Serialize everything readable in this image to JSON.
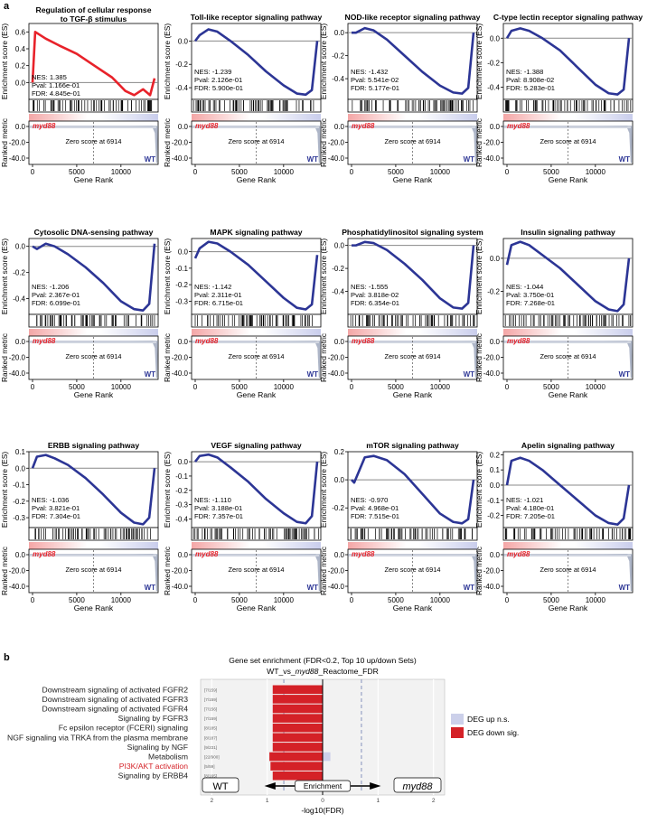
{
  "panel_labels": {
    "a": "a",
    "b": "b"
  },
  "gsea_common": {
    "y_axis_label": "Enrichment score (ES)",
    "ranked_axis_label": "Ranked metric",
    "x_axis_label": "Gene Rank",
    "x_ticks": [
      "0",
      "5000",
      "10000"
    ],
    "ranked_ticks": [
      "0.0",
      "-20.0",
      "-40.0"
    ],
    "group_left": "myd88",
    "group_right": "WT",
    "zero_score_text": "Zero score at 6914",
    "colors": {
      "line_up": "#e8222a",
      "line_down": "#2c3595",
      "group_left": "#e8222a",
      "group_right": "#2c3595"
    }
  },
  "panels": [
    {
      "title": "Regulation of cellular response to TGF-β stimulus",
      "title_line2": "to TGF-β stimulus",
      "title_line1": "Regulation of cellular response",
      "nes": "NES: 1.385",
      "pval": "Pval: 1.166e-01",
      "fdr": "FDR: 4.845e-01",
      "y_ticks": [
        "0.6",
        "0.4",
        "0.2",
        "0.0"
      ],
      "up": true
    },
    {
      "title_line1": "Toll-like receptor signaling pathway",
      "nes": "NES: -1.239",
      "pval": "Pval: 2.126e-01",
      "fdr": "FDR: 5.900e-01",
      "y_ticks": [
        "0.0",
        "-0.2",
        "-0.4"
      ],
      "up": false
    },
    {
      "title_line1": "NOD-like receptor signaling pathway",
      "nes": "NES: -1.432",
      "pval": "Pval: 5.541e-02",
      "fdr": "FDR: 5.177e-01",
      "y_ticks": [
        "0.0",
        "-0.2",
        "-0.4"
      ],
      "up": false
    },
    {
      "title_line1": "C-type lectin receptor signaling pathway",
      "nes": "NES: -1.388",
      "pval": "Pval: 8.908e-02",
      "fdr": "FDR: 5.283e-01",
      "y_ticks": [
        "0.0",
        "-0.2",
        "-0.4"
      ],
      "up": false
    },
    {
      "title_line1": "Cytosolic DNA-sensing pathway",
      "nes": "NES: -1.206",
      "pval": "Pval: 2.367e-01",
      "fdr": "FDR: 6.099e-01",
      "y_ticks": [
        "0.0",
        "-0.2",
        "-0.4"
      ],
      "up": false
    },
    {
      "title_line1": "MAPK signaling pathway",
      "nes": "NES: -1.142",
      "pval": "Pval: 2.311e-01",
      "fdr": "FDR: 6.715e-01",
      "y_ticks": [
        "0.0",
        "-0.1",
        "-0.2",
        "-0.3"
      ],
      "up": false
    },
    {
      "title_line1": "Phosphatidylinositol signaling system",
      "nes": "NES: -1.555",
      "pval": "Pval: 3.818e-02",
      "fdr": "FDR: 6.354e-01",
      "y_ticks": [
        "0.0",
        "-0.2",
        "-0.4"
      ],
      "up": false
    },
    {
      "title_line1": "Insulin signaling pathway",
      "nes": "NES: -1.044",
      "pval": "Pval: 3.750e-01",
      "fdr": "FDR: 7.268e-01",
      "y_ticks": [
        "0.0",
        "-0.2"
      ],
      "up": false
    },
    {
      "title_line1": "ERBB signaling pathway",
      "nes": "NES: -1.036",
      "pval": "Pval: 3.821e-01",
      "fdr": "FDR: 7.304e-01",
      "y_ticks": [
        "0.1",
        "0.0",
        "-0.1",
        "-0.2",
        "-0.3"
      ],
      "up": false
    },
    {
      "title_line1": "VEGF signaling pathway",
      "nes": "NES: -1.110",
      "pval": "Pval: 3.188e-01",
      "fdr": "FDR: 7.357e-01",
      "y_ticks": [
        "0.0",
        "-0.1",
        "-0.2",
        "-0.3",
        "-0.4"
      ],
      "up": false
    },
    {
      "title_line1": "mTOR signaling pathway",
      "nes": "NES: -0.970",
      "pval": "Pval: 4.968e-01",
      "fdr": "FDR: 7.515e-01",
      "y_ticks": [
        "0.2",
        "0.0",
        "-0.2"
      ],
      "up": false
    },
    {
      "title_line1": "Apelin signaling pathway",
      "nes": "NES: -1.021",
      "pval": "Pval: 4.180e-01",
      "fdr": "FDR: 7.205e-01",
      "y_ticks": [
        "0.2",
        "0.1",
        "0.0",
        "-0.1",
        "-0.2"
      ],
      "up": false
    }
  ],
  "chart_data": [
    {
      "type": "line",
      "title": "Regulation of cellular response to TGF-β stimulus",
      "xlabel": "Gene Rank",
      "ylabel": "Enrichment score (ES)",
      "x": [
        0,
        300,
        1500,
        3000,
        5000,
        7000,
        9000,
        10500,
        11500,
        12500,
        13300,
        13800
      ],
      "y": [
        0.0,
        0.6,
        0.52,
        0.44,
        0.34,
        0.2,
        0.06,
        -0.1,
        -0.15,
        -0.08,
        -0.15,
        0.05
      ],
      "ylim": [
        -0.2,
        0.7
      ],
      "xlim": [
        0,
        13800
      ]
    },
    {
      "type": "line",
      "title": "Toll-like receptor signaling pathway",
      "xlabel": "Gene Rank",
      "ylabel": "Enrichment score (ES)",
      "x": [
        0,
        500,
        1500,
        2500,
        4000,
        6000,
        8000,
        10000,
        11500,
        12500,
        13200,
        13800
      ],
      "y": [
        0.0,
        0.05,
        0.1,
        0.08,
        0.0,
        -0.12,
        -0.26,
        -0.38,
        -0.45,
        -0.46,
        -0.42,
        0.0
      ],
      "ylim": [
        -0.5,
        0.15
      ],
      "xlim": [
        0,
        13800
      ]
    },
    {
      "type": "line",
      "title": "NOD-like receptor signaling pathway",
      "xlabel": "Gene Rank",
      "ylabel": "Enrichment score (ES)",
      "x": [
        0,
        500,
        1500,
        2500,
        4000,
        6000,
        8000,
        10000,
        11500,
        12500,
        13200,
        13800
      ],
      "y": [
        0.0,
        0.0,
        0.04,
        0.02,
        -0.06,
        -0.2,
        -0.34,
        -0.46,
        -0.52,
        -0.53,
        -0.48,
        0.0
      ],
      "ylim": [
        -0.58,
        0.08
      ],
      "xlim": [
        0,
        13800
      ]
    },
    {
      "type": "line",
      "title": "C-type lectin receptor signaling pathway",
      "xlabel": "Gene Rank",
      "ylabel": "Enrichment score (ES)",
      "x": [
        0,
        500,
        1500,
        2500,
        4000,
        6000,
        8000,
        10000,
        11500,
        12500,
        13200,
        13800
      ],
      "y": [
        0.0,
        0.06,
        0.08,
        0.06,
        0.0,
        -0.1,
        -0.24,
        -0.38,
        -0.45,
        -0.46,
        -0.42,
        0.0
      ],
      "ylim": [
        -0.5,
        0.12
      ],
      "xlim": [
        0,
        13800
      ]
    },
    {
      "type": "line",
      "title": "Cytosolic DNA-sensing pathway",
      "xlabel": "Gene Rank",
      "ylabel": "Enrichment score (ES)",
      "x": [
        0,
        500,
        1500,
        2500,
        4000,
        6000,
        8000,
        10000,
        11500,
        12500,
        13200,
        13800
      ],
      "y": [
        0.0,
        -0.02,
        0.02,
        0.0,
        -0.06,
        -0.16,
        -0.28,
        -0.42,
        -0.48,
        -0.49,
        -0.44,
        0.02
      ],
      "ylim": [
        -0.52,
        0.06
      ],
      "xlim": [
        0,
        13800
      ]
    },
    {
      "type": "line",
      "title": "MAPK signaling pathway",
      "xlabel": "Gene Rank",
      "ylabel": "Enrichment score (ES)",
      "x": [
        0,
        500,
        1500,
        2500,
        4000,
        6000,
        8000,
        10000,
        11500,
        12500,
        13200,
        13800
      ],
      "y": [
        -0.04,
        0.02,
        0.06,
        0.05,
        0.0,
        -0.08,
        -0.18,
        -0.28,
        -0.34,
        -0.35,
        -0.32,
        -0.02
      ],
      "ylim": [
        -0.38,
        0.08
      ],
      "xlim": [
        0,
        13800
      ]
    },
    {
      "type": "line",
      "title": "Phosphatidylinositol signaling system",
      "xlabel": "Gene Rank",
      "ylabel": "Enrichment score (ES)",
      "x": [
        0,
        500,
        1500,
        2500,
        4000,
        6000,
        8000,
        10000,
        11500,
        12500,
        13200,
        13800
      ],
      "y": [
        0.0,
        0.0,
        0.03,
        0.02,
        -0.04,
        -0.16,
        -0.3,
        -0.46,
        -0.54,
        -0.55,
        -0.5,
        0.0
      ],
      "ylim": [
        -0.6,
        0.06
      ],
      "xlim": [
        0,
        13800
      ]
    },
    {
      "type": "line",
      "title": "Insulin signaling pathway",
      "xlabel": "Gene Rank",
      "ylabel": "Enrichment score (ES)",
      "x": [
        0,
        500,
        1500,
        2500,
        4000,
        6000,
        8000,
        10000,
        11500,
        12500,
        13200,
        13800
      ],
      "y": [
        -0.04,
        0.08,
        0.1,
        0.08,
        0.02,
        -0.06,
        -0.16,
        -0.26,
        -0.31,
        -0.32,
        -0.28,
        0.0
      ],
      "ylim": [
        -0.34,
        0.12
      ],
      "xlim": [
        0,
        13800
      ]
    },
    {
      "type": "line",
      "title": "ERBB signaling pathway",
      "xlabel": "Gene Rank",
      "ylabel": "Enrichment score (ES)",
      "x": [
        0,
        500,
        1500,
        2500,
        4000,
        6000,
        8000,
        10000,
        11500,
        12500,
        13200,
        13800
      ],
      "y": [
        0.0,
        0.07,
        0.08,
        0.06,
        0.02,
        -0.06,
        -0.16,
        -0.27,
        -0.33,
        -0.34,
        -0.3,
        0.0
      ],
      "ylim": [
        -0.36,
        0.1
      ],
      "xlim": [
        0,
        13800
      ]
    },
    {
      "type": "line",
      "title": "VEGF signaling pathway",
      "xlabel": "Gene Rank",
      "ylabel": "Enrichment score (ES)",
      "x": [
        0,
        500,
        1500,
        2500,
        4000,
        6000,
        8000,
        10000,
        11500,
        12500,
        13200,
        13800
      ],
      "y": [
        0.0,
        0.04,
        0.05,
        0.03,
        -0.04,
        -0.14,
        -0.26,
        -0.36,
        -0.42,
        -0.43,
        -0.38,
        0.0
      ],
      "ylim": [
        -0.46,
        0.07
      ],
      "xlim": [
        0,
        13800
      ]
    },
    {
      "type": "line",
      "title": "mTOR signaling pathway",
      "xlabel": "Gene Rank",
      "ylabel": "Enrichment score (ES)",
      "x": [
        0,
        300,
        1500,
        2500,
        4000,
        6000,
        8000,
        10000,
        11500,
        12500,
        13200,
        13800
      ],
      "y": [
        0.0,
        -0.02,
        0.16,
        0.17,
        0.14,
        0.04,
        -0.1,
        -0.24,
        -0.3,
        -0.31,
        -0.28,
        0.0
      ],
      "ylim": [
        -0.34,
        0.2
      ],
      "xlim": [
        0,
        13800
      ]
    },
    {
      "type": "line",
      "title": "Apelin signaling pathway",
      "xlabel": "Gene Rank",
      "ylabel": "Enrichment score (ES)",
      "x": [
        0,
        500,
        1500,
        2500,
        4000,
        6000,
        8000,
        10000,
        11500,
        12500,
        13200,
        13800
      ],
      "y": [
        0.0,
        0.16,
        0.18,
        0.16,
        0.1,
        0.0,
        -0.1,
        -0.2,
        -0.25,
        -0.26,
        -0.22,
        0.0
      ],
      "ylim": [
        -0.28,
        0.22
      ],
      "xlim": [
        0,
        13800
      ]
    },
    {
      "type": "bar",
      "title": "Gene set enrichment (FDR<0.2, Top 10 up/down Sets)",
      "subtitle_pre": "WT_vs_",
      "subtitle_em": "myd88",
      "subtitle_post": "_Reactome_FDR",
      "xlabel": "-log10(FDR)",
      "x_ticks": [
        "2",
        "1",
        "0",
        "1",
        "2"
      ],
      "left_box": "WT",
      "right_box": "myd88",
      "center_box": "Enrichment",
      "categories": [
        "Downstream signaling of activated FGFR2",
        "Downstream signaling of activated FGFR3",
        "Downstream signaling of activated FGFR4",
        "Signaling by FGFR3",
        "Fc epsilon receptor (FCERI) signaling",
        "NGF signaling via TRKA from the plasma membrane",
        "Signaling by NGF",
        "Metabolism",
        "PI3K/AKT activation",
        "Signaling by ERBB4"
      ],
      "counts": [
        "[7/159]",
        "[7/159]",
        "[7/156]",
        "[7/159]",
        "[8/185]",
        "[8/187]",
        "[9/231]",
        "[22/900]",
        "[5/59]",
        "[8/165]"
      ],
      "highlight_category": "PI3K/AKT activation",
      "series": [
        {
          "name": "DEG up n.s.",
          "values": [
            0,
            0,
            0,
            0,
            0,
            0,
            0,
            0.14,
            0,
            0
          ]
        },
        {
          "name": "DEG down sig.",
          "values": [
            -0.9,
            -0.9,
            -0.9,
            -0.9,
            -0.9,
            -0.9,
            -0.9,
            -0.96,
            -0.94,
            -0.9
          ]
        }
      ],
      "xlim": [
        -2.2,
        2.2
      ],
      "colors": {
        "up": "#ccd0ea",
        "down": "#d42127",
        "highlight_text": "#d42127"
      }
    }
  ]
}
